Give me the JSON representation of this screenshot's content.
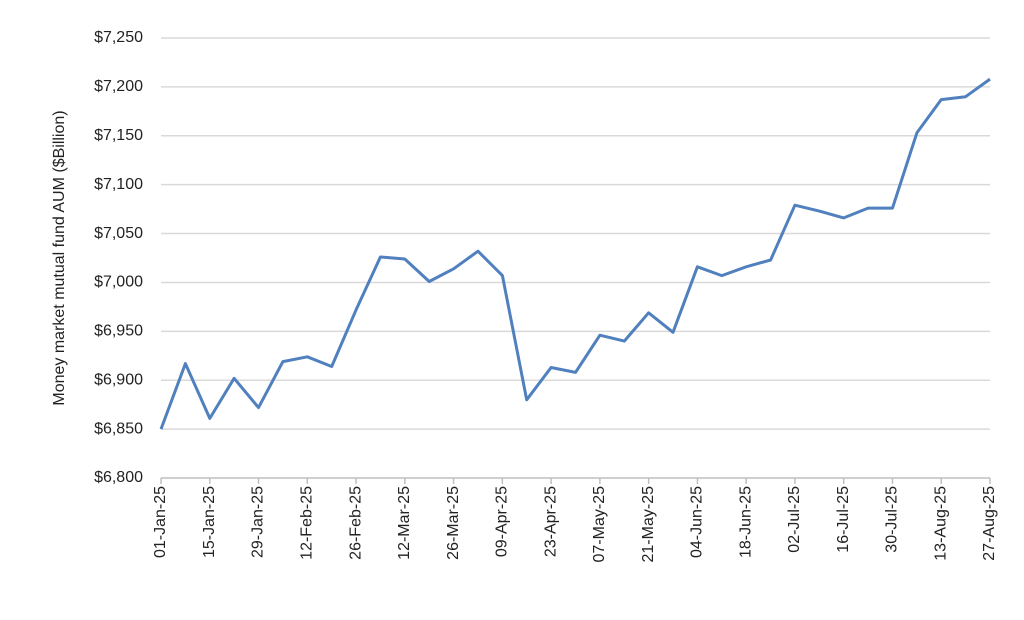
{
  "chart_data": {
    "type": "line",
    "y_label": "Money market mutual fund AUM ($Billion)",
    "categories": [
      "01-Jan-25",
      null,
      "15-Jan-25",
      null,
      "29-Jan-25",
      null,
      "12-Feb-25",
      null,
      "26-Feb-25",
      null,
      "12-Mar-25",
      null,
      "26-Mar-25",
      null,
      "09-Apr-25",
      null,
      "23-Apr-25",
      null,
      "07-May-25",
      null,
      "21-May-25",
      null,
      "04-Jun-25",
      null,
      "18-Jun-25",
      null,
      "02-Jul-25",
      null,
      "16-Jul-25",
      null,
      "30-Jul-25",
      null,
      "13-Aug-25",
      null,
      "27-Aug-25"
    ],
    "values": [
      6850,
      6917,
      6861,
      6902,
      6872,
      6919,
      6924,
      6914,
      6972,
      7026,
      7024,
      7001,
      7014,
      7032,
      7007,
      6880,
      6913,
      6908,
      6946,
      6940,
      6969,
      6949,
      7016,
      7007,
      7016,
      7023,
      7079,
      7073,
      7066,
      7076,
      7076,
      7153,
      7187,
      7190,
      7208
    ],
    "color": "#5080be",
    "ylim": [
      6800,
      7250
    ],
    "yticks": [
      {
        "value": 6800,
        "label": "$6,800"
      },
      {
        "value": 6850,
        "label": "$6,850"
      },
      {
        "value": 6900,
        "label": "$6,900"
      },
      {
        "value": 6950,
        "label": "$6,950"
      },
      {
        "value": 7000,
        "label": "$7,000"
      },
      {
        "value": 7050,
        "label": "$7,050"
      },
      {
        "value": 7100,
        "label": "$7,100"
      },
      {
        "value": 7150,
        "label": "$7,150"
      },
      {
        "value": 7200,
        "label": "$7,200"
      },
      {
        "value": 7250,
        "label": "$7,250"
      }
    ],
    "grid": true
  }
}
